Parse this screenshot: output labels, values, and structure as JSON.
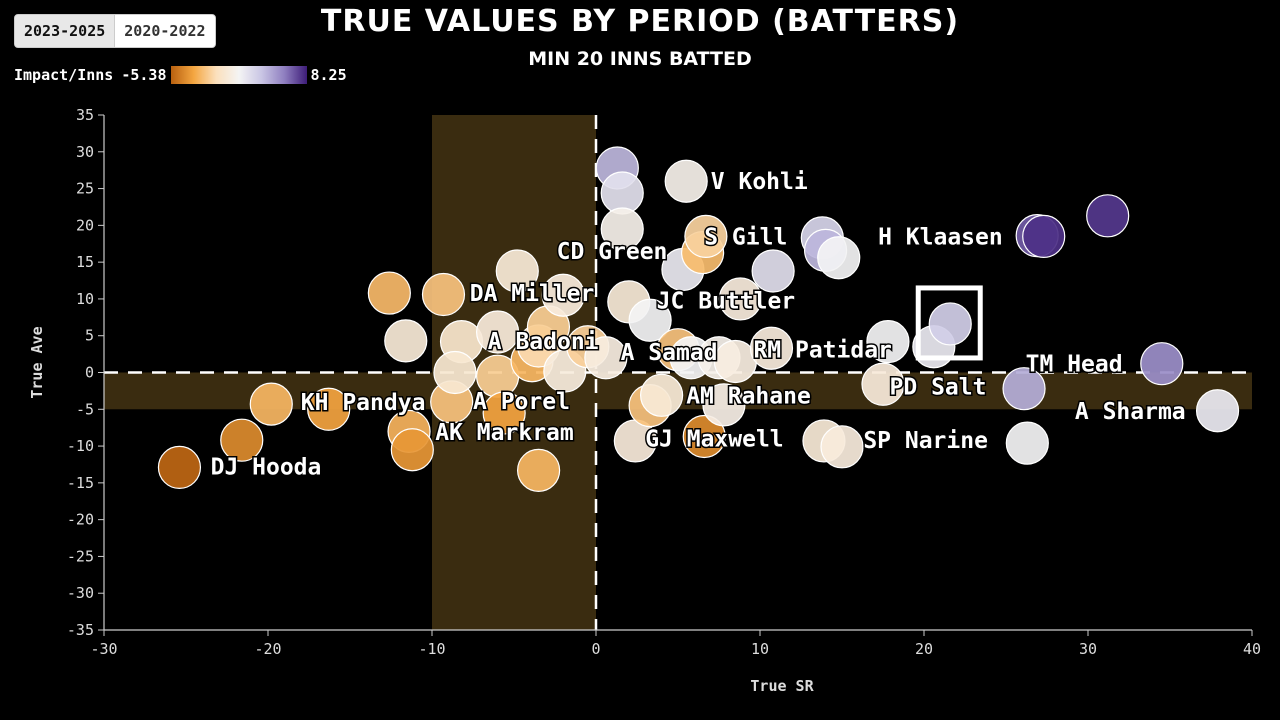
{
  "period_toggle": {
    "options": [
      "2023-2025",
      "2020-2022"
    ],
    "selected": "2023-2025"
  },
  "color_scale": {
    "label": "Impact/Inns",
    "min_label": "-5.38",
    "max_label": "8.25",
    "colors": [
      "#b8600f",
      "#f4a641",
      "#fbe0bd",
      "#f4f4f4",
      "#c9c5e4",
      "#8f7fc0",
      "#3d1c78"
    ]
  },
  "chart_data": {
    "type": "scatter",
    "title": "True Values by Period (Batters)",
    "subtitle": "Min 20 Inns Batted",
    "xlabel": "True SR",
    "ylabel": "True Ave",
    "xlim": [
      -30,
      40
    ],
    "ylim": [
      -35,
      35
    ],
    "xticks": [
      -30,
      -20,
      -10,
      0,
      10,
      20,
      30,
      40
    ],
    "yticks": [
      35,
      30,
      25,
      20,
      15,
      10,
      5,
      0,
      -5,
      -10,
      -15,
      -20,
      -25,
      -30,
      -35
    ],
    "shaded_bands": [
      {
        "axis": "x",
        "from": -10,
        "to": 0
      },
      {
        "axis": "y",
        "from": -5,
        "to": 0
      }
    ],
    "highlighted_player": "PD Salt",
    "points": [
      {
        "x": -25.4,
        "y": -12.9,
        "impact": -5.2
      },
      {
        "x": -21.6,
        "y": -9.2,
        "impact": -4.0
      },
      {
        "x": -19.8,
        "y": -4.3,
        "impact": -2.5
      },
      {
        "x": -16.3,
        "y": -5.0,
        "impact": -3.2
      },
      {
        "x": -12.6,
        "y": 10.8,
        "impact": -2.4
      },
      {
        "x": -11.6,
        "y": 4.3,
        "impact": 0.2
      },
      {
        "x": -11.4,
        "y": -8.0,
        "impact": -2.6
      },
      {
        "x": -11.2,
        "y": -10.5,
        "impact": -3.6
      },
      {
        "x": -9.3,
        "y": 10.6,
        "impact": -2.0
      },
      {
        "x": -8.8,
        "y": -4.0,
        "impact": -2.0
      },
      {
        "x": -8.2,
        "y": 4.2,
        "impact": -0.2
      },
      {
        "x": -8.6,
        "y": 0.0,
        "impact": 0.0
      },
      {
        "x": -6.0,
        "y": 5.5,
        "impact": 0.3
      },
      {
        "x": -6.0,
        "y": -0.5,
        "impact": -1.6
      },
      {
        "x": -5.6,
        "y": -5.5,
        "impact": -3.2
      },
      {
        "x": -4.8,
        "y": 13.8,
        "impact": 0.2
      },
      {
        "x": -3.9,
        "y": 1.6,
        "impact": -2.5
      },
      {
        "x": -3.5,
        "y": 3.6,
        "impact": -1.1
      },
      {
        "x": -3.5,
        "y": -13.3,
        "impact": -2.5
      },
      {
        "x": -2.9,
        "y": 6.2,
        "impact": -1.6
      },
      {
        "x": -2.0,
        "y": 10.5,
        "impact": 0.4
      },
      {
        "x": -1.9,
        "y": 0.2,
        "impact": 0.5
      },
      {
        "x": -0.5,
        "y": 3.5,
        "impact": -1.5
      },
      {
        "x": 0.6,
        "y": 2.0,
        "impact": 0.6
      },
      {
        "x": 1.3,
        "y": 27.8,
        "impact": 4.2
      },
      {
        "x": 1.6,
        "y": 24.4,
        "impact": 2.4
      },
      {
        "x": 1.6,
        "y": 19.5,
        "impact": 1.0
      },
      {
        "x": 2.0,
        "y": 9.6,
        "impact": 0.2
      },
      {
        "x": 2.4,
        "y": -9.3,
        "impact": 0.3
      },
      {
        "x": 3.3,
        "y": 7.1,
        "impact": 1.5
      },
      {
        "x": 3.3,
        "y": -4.5,
        "impact": -2.0
      },
      {
        "x": 4.0,
        "y": -3.1,
        "impact": 0.2
      },
      {
        "x": 5.0,
        "y": 3.1,
        "impact": -2.0
      },
      {
        "x": 5.3,
        "y": 14.0,
        "impact": 2.0
      },
      {
        "x": 5.5,
        "y": 26.0,
        "impact": 1.0
      },
      {
        "x": 5.8,
        "y": 2.0,
        "impact": 1.5
      },
      {
        "x": 6.5,
        "y": 16.3,
        "impact": -2.3
      },
      {
        "x": 6.7,
        "y": 18.5,
        "impact": -1.4
      },
      {
        "x": 6.6,
        "y": -8.7,
        "impact": -4.0
      },
      {
        "x": 7.5,
        "y": 2.0,
        "impact": 1.0
      },
      {
        "x": 7.8,
        "y": -4.4,
        "impact": 0.8
      },
      {
        "x": 8.5,
        "y": 1.5,
        "impact": 0.6
      },
      {
        "x": 8.8,
        "y": 10.0,
        "impact": 0.4
      },
      {
        "x": 10.7,
        "y": 3.3,
        "impact": 0.4
      },
      {
        "x": 10.8,
        "y": 13.8,
        "impact": 2.5
      },
      {
        "x": 13.8,
        "y": 18.3,
        "impact": 3.0
      },
      {
        "x": 13.9,
        "y": -9.3,
        "impact": 0.2
      },
      {
        "x": 14.0,
        "y": 16.6,
        "impact": 4.2
      },
      {
        "x": 14.8,
        "y": 15.6,
        "impact": 1.5
      },
      {
        "x": 15.0,
        "y": -10.1,
        "impact": 0.4
      },
      {
        "x": 17.5,
        "y": -1.6,
        "impact": 0.3
      },
      {
        "x": 17.8,
        "y": 4.2,
        "impact": 1.5
      },
      {
        "x": 20.6,
        "y": 3.5,
        "impact": 2.0
      },
      {
        "x": 21.6,
        "y": 6.6,
        "impact": 3.3
      },
      {
        "x": 26.1,
        "y": -2.2,
        "impact": 4.5
      },
      {
        "x": 26.3,
        "y": -9.6,
        "impact": 1.5
      },
      {
        "x": 26.9,
        "y": 18.6,
        "impact": 6.8
      },
      {
        "x": 27.3,
        "y": 18.5,
        "impact": 7.8
      },
      {
        "x": 31.2,
        "y": 21.3,
        "impact": 7.6
      },
      {
        "x": 34.5,
        "y": 1.2,
        "impact": 5.5
      },
      {
        "x": 37.9,
        "y": -5.2,
        "impact": 1.9
      }
    ],
    "annotations": [
      {
        "text": "V Kohli",
        "x": 7.0,
        "y": 26.0
      },
      {
        "text": "S Gill",
        "x": 6.6,
        "y": 18.5
      },
      {
        "text": "H Klaasen",
        "x": 17.2,
        "y": 18.5
      },
      {
        "text": "CD Green",
        "x": -2.4,
        "y": 16.5
      },
      {
        "text": "DA Miller",
        "x": -7.7,
        "y": 10.8
      },
      {
        "text": "JC Buttler",
        "x": 3.7,
        "y": 9.8
      },
      {
        "text": "A Badoni",
        "x": -6.6,
        "y": 4.3
      },
      {
        "text": "A Samad",
        "x": 1.5,
        "y": 2.8
      },
      {
        "text": "RM Patidar",
        "x": 9.6,
        "y": 3.1
      },
      {
        "text": "TM Head",
        "x": 26.2,
        "y": 1.2
      },
      {
        "text": "PD Salt",
        "x": 17.9,
        "y": -1.9
      },
      {
        "text": "KH Pandya",
        "x": -18.0,
        "y": -4.0
      },
      {
        "text": "A Porel",
        "x": -7.5,
        "y": -3.9
      },
      {
        "text": "AM Rahane",
        "x": 5.5,
        "y": -3.1
      },
      {
        "text": "A Sharma",
        "x": 29.2,
        "y": -5.2
      },
      {
        "text": "AK Markram",
        "x": -9.8,
        "y": -8.1
      },
      {
        "text": "GJ Maxwell",
        "x": 3.0,
        "y": -9.0
      },
      {
        "text": "SP Narine",
        "x": 16.3,
        "y": -9.2
      },
      {
        "text": "DJ Hooda",
        "x": -23.5,
        "y": -12.8
      }
    ]
  }
}
